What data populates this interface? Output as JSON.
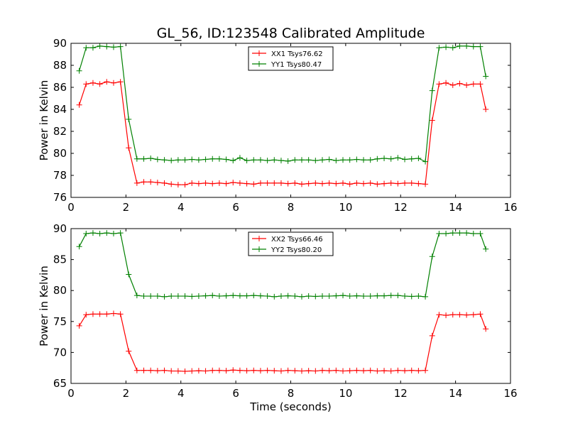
{
  "chart_data": [
    {
      "type": "line",
      "title": "GL_56, ID:123548 Calibrated Amplitude",
      "xlabel": "",
      "ylabel": "Power in Kelvin",
      "xlim": [
        0,
        16
      ],
      "ylim": [
        76,
        90
      ],
      "xticks": [
        0,
        2,
        4,
        6,
        8,
        10,
        12,
        14,
        16
      ],
      "yticks": [
        76,
        78,
        80,
        82,
        84,
        86,
        88,
        90
      ],
      "grid": false,
      "legend_position": "top-center",
      "marker": "+",
      "x": [
        0.3,
        0.55,
        0.8,
        1.05,
        1.3,
        1.55,
        1.8,
        2.1,
        2.4,
        2.65,
        2.9,
        3.15,
        3.4,
        3.65,
        3.9,
        4.15,
        4.4,
        4.65,
        4.9,
        5.15,
        5.4,
        5.65,
        5.9,
        6.15,
        6.4,
        6.65,
        6.9,
        7.15,
        7.4,
        7.65,
        7.9,
        8.15,
        8.4,
        8.65,
        8.9,
        9.15,
        9.4,
        9.65,
        9.9,
        10.15,
        10.4,
        10.65,
        10.9,
        11.15,
        11.4,
        11.65,
        11.9,
        12.15,
        12.4,
        12.65,
        12.9,
        13.15,
        13.4,
        13.65,
        13.9,
        14.15,
        14.4,
        14.65,
        14.9,
        15.1
      ],
      "series": [
        {
          "name": "XX1 Tsys76.62",
          "color": "#ff0000",
          "values": [
            84.4,
            86.3,
            86.4,
            86.3,
            86.5,
            86.4,
            86.5,
            80.5,
            77.3,
            77.4,
            77.4,
            77.35,
            77.3,
            77.2,
            77.15,
            77.15,
            77.3,
            77.25,
            77.3,
            77.25,
            77.3,
            77.25,
            77.35,
            77.3,
            77.25,
            77.2,
            77.3,
            77.3,
            77.3,
            77.3,
            77.25,
            77.3,
            77.2,
            77.25,
            77.3,
            77.25,
            77.3,
            77.25,
            77.3,
            77.2,
            77.3,
            77.25,
            77.3,
            77.2,
            77.25,
            77.3,
            77.25,
            77.3,
            77.3,
            77.25,
            77.2,
            83.0,
            86.3,
            86.4,
            86.2,
            86.35,
            86.2,
            86.3,
            86.3,
            84.0
          ]
        },
        {
          "name": "YY1 Tsys80.47",
          "color": "#008000",
          "values": [
            87.5,
            89.6,
            89.6,
            89.75,
            89.7,
            89.65,
            89.7,
            83.1,
            79.5,
            79.5,
            79.55,
            79.45,
            79.4,
            79.35,
            79.4,
            79.4,
            79.45,
            79.4,
            79.45,
            79.5,
            79.5,
            79.45,
            79.35,
            79.6,
            79.35,
            79.4,
            79.4,
            79.35,
            79.4,
            79.35,
            79.3,
            79.4,
            79.4,
            79.4,
            79.35,
            79.4,
            79.45,
            79.35,
            79.4,
            79.4,
            79.45,
            79.4,
            79.4,
            79.5,
            79.55,
            79.5,
            79.6,
            79.45,
            79.5,
            79.55,
            79.25,
            85.7,
            89.6,
            89.65,
            89.6,
            89.75,
            89.75,
            89.7,
            89.7,
            87.0
          ]
        }
      ]
    },
    {
      "type": "line",
      "title": "",
      "xlabel": "Time (seconds)",
      "ylabel": "Power in Kelvin",
      "xlim": [
        0,
        16
      ],
      "ylim": [
        65,
        90
      ],
      "xticks": [
        0,
        2,
        4,
        6,
        8,
        10,
        12,
        14,
        16
      ],
      "yticks": [
        65,
        70,
        75,
        80,
        85,
        90
      ],
      "grid": false,
      "legend_position": "top-center",
      "marker": "+",
      "x": [
        0.3,
        0.55,
        0.8,
        1.05,
        1.3,
        1.55,
        1.8,
        2.1,
        2.4,
        2.65,
        2.9,
        3.15,
        3.4,
        3.65,
        3.9,
        4.15,
        4.4,
        4.65,
        4.9,
        5.15,
        5.4,
        5.65,
        5.9,
        6.15,
        6.4,
        6.65,
        6.9,
        7.15,
        7.4,
        7.65,
        7.9,
        8.15,
        8.4,
        8.65,
        8.9,
        9.15,
        9.4,
        9.65,
        9.9,
        10.15,
        10.4,
        10.65,
        10.9,
        11.15,
        11.4,
        11.65,
        11.9,
        12.15,
        12.4,
        12.65,
        12.9,
        13.15,
        13.4,
        13.65,
        13.9,
        14.15,
        14.4,
        14.65,
        14.9,
        15.1
      ],
      "series": [
        {
          "name": "XX2 Tsys66.46",
          "color": "#ff0000",
          "values": [
            74.3,
            76.1,
            76.2,
            76.2,
            76.2,
            76.3,
            76.2,
            70.2,
            67.1,
            67.1,
            67.1,
            67.05,
            67.1,
            67.0,
            67.0,
            66.95,
            67.0,
            67.05,
            67.0,
            67.1,
            67.1,
            67.05,
            67.15,
            67.1,
            67.05,
            67.1,
            67.05,
            67.1,
            67.05,
            67.0,
            67.1,
            67.05,
            67.0,
            67.05,
            67.0,
            67.1,
            67.05,
            67.1,
            67.0,
            67.05,
            67.1,
            67.05,
            67.1,
            67.0,
            67.05,
            67.0,
            67.1,
            67.05,
            67.1,
            67.05,
            67.1,
            72.7,
            76.1,
            76.0,
            76.1,
            76.1,
            76.05,
            76.1,
            76.2,
            73.8
          ]
        },
        {
          "name": "YY2 Tsys80.20",
          "color": "#008000",
          "values": [
            87.1,
            89.2,
            89.3,
            89.2,
            89.3,
            89.2,
            89.3,
            82.6,
            79.2,
            79.1,
            79.1,
            79.1,
            79.0,
            79.1,
            79.1,
            79.1,
            79.05,
            79.1,
            79.15,
            79.2,
            79.1,
            79.15,
            79.2,
            79.15,
            79.15,
            79.2,
            79.15,
            79.1,
            79.0,
            79.1,
            79.15,
            79.1,
            79.0,
            79.1,
            79.05,
            79.1,
            79.1,
            79.15,
            79.2,
            79.1,
            79.15,
            79.1,
            79.1,
            79.15,
            79.15,
            79.2,
            79.2,
            79.1,
            79.05,
            79.1,
            79.0,
            85.5,
            89.2,
            89.2,
            89.3,
            89.3,
            89.3,
            89.2,
            89.2,
            86.7
          ]
        }
      ]
    }
  ]
}
